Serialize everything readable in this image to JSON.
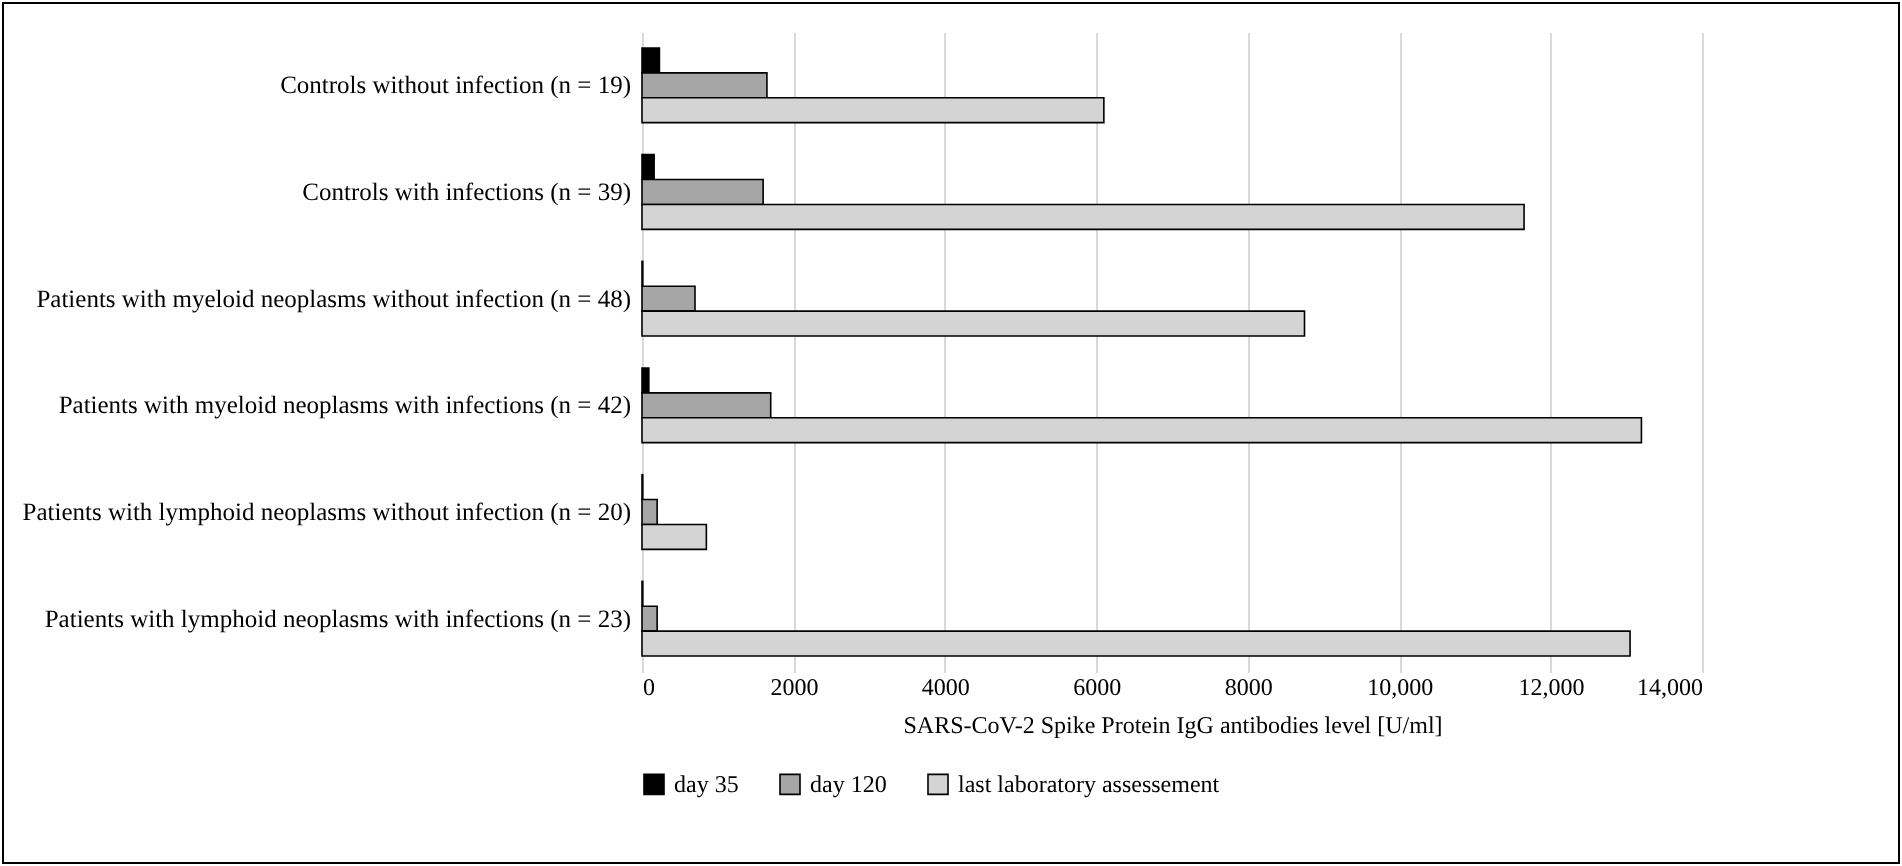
{
  "chart_data": {
    "type": "bar",
    "orientation": "horizontal",
    "xlabel": "SARS-CoV-2 Spike Protein IgG antibodies level [U/ml]",
    "categories": [
      "Controls without infection (n = 19)",
      "Controls with infections (n = 39)",
      "Patients with myeloid neoplasms without infection (n = 48)",
      "Patients with myeloid neoplasms with infections (n = 42)",
      "Patients with lymphoid neoplasms without infection (n = 20)",
      "Patients with lymphoid neoplasms with infections (n = 23)"
    ],
    "series": [
      {
        "name": "day 35",
        "color": "#000000",
        "values": [
          230,
          160,
          10,
          90,
          10,
          10
        ]
      },
      {
        "name": "day 120",
        "color": "#a6a6a6",
        "values": [
          1650,
          1600,
          700,
          1700,
          200,
          200
        ]
      },
      {
        "name": "last laboratory assessement",
        "color": "#d4d4d4",
        "values": [
          6100,
          11650,
          8750,
          13200,
          850,
          13050
        ]
      }
    ],
    "xlim": [
      0,
      14000
    ],
    "xticks": [
      0,
      2000,
      4000,
      6000,
      8000,
      {
        "value": 10000,
        "label": "10,000"
      },
      {
        "value": 12000,
        "label": "12,000"
      },
      {
        "value": 14000,
        "label": "14,000"
      }
    ],
    "grid": "x",
    "legend": "bottom"
  }
}
